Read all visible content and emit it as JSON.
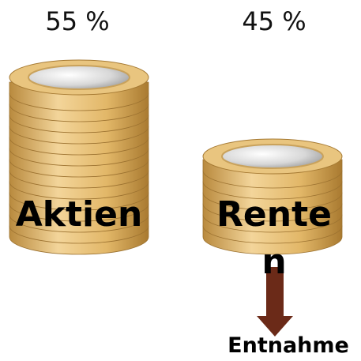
{
  "stacks": [
    {
      "share": "55 %",
      "label": "Aktien"
    },
    {
      "share": "45 %",
      "label": "Renten"
    }
  ],
  "arrow_label": "Entnahme"
}
